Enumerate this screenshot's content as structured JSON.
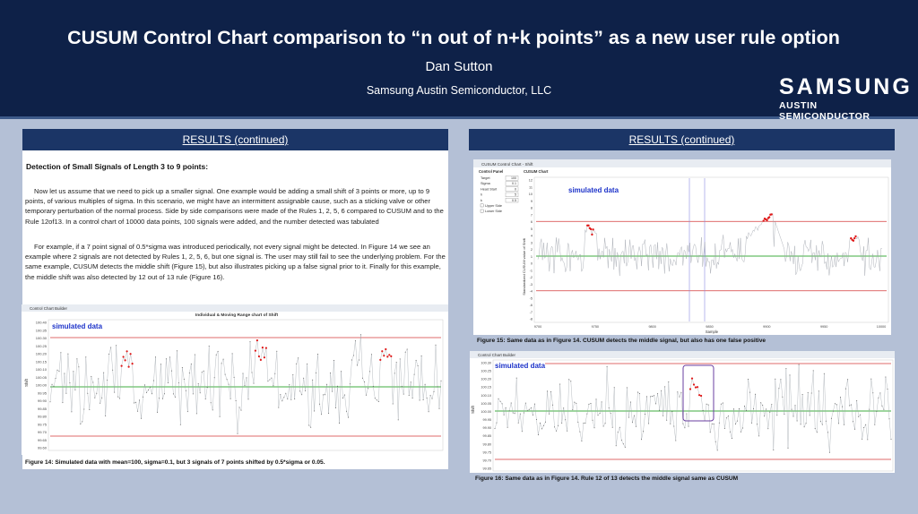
{
  "header": {
    "title": "CUSUM Control Chart comparison to “n out of n+k points” as a new user rule option",
    "author": "Dan Sutton",
    "affiliation": "Samsung Austin Semiconductor, LLC",
    "logo_main": "SAMSUNG",
    "logo_sub": "AUSTIN SEMICONDUCTOR"
  },
  "left": {
    "section_title": "RESULTS (continued)",
    "subheading": "Detection of Small Signals of Length 3 to 9 points:",
    "para1": "Now let us assume that we need to pick up a smaller signal. One example would be adding a small shift of 3 points or more, up to 9 points, of various multiples of sigma. In this scenario, we might have an intermittent assignable cause, such as a sticking valve or other temporary perturbation of the normal process. Side by side comparisons were made of the Rules 1, 2, 5, 6 compared to CUSUM and to the Rule 12of13. In a control chart of 10000 data points, 100 signals were added, and the number detected was tabulated",
    "para2": "For example, if a 7 point signal of 0.5*sigma was introduced periodically, not every signal might be detected. In Figure 14 we see an example where 2 signals are not detected by Rules 1, 2, 5, 6, but one signal is. The user may still fail to see the underlying problem. For the same example, CUSUM detects the middle shift (Figure 15), but also illustrates picking up a false signal prior to it. Finally for this example, the middle shift was also detected by 12 out of 13 rule (Figure 16).",
    "fig14_window": "Control Chart Builder",
    "fig14_title": "Individual & Moving Range chart of Shift",
    "fig14_label": "simulated data",
    "fig14_caption": "Figure 14: Simulated data with mean=100, sigma=0.1, but 3 signals of 7 points shifted by 0.5*sigma or 0.05.",
    "fig14_ylabel": "Shift",
    "fig14_ticks": [
      "100.40",
      "100.35",
      "100.30",
      "100.25",
      "100.20",
      "100.15",
      "100.10",
      "100.05",
      "100.00",
      "99.95",
      "99.90",
      "99.85",
      "99.80",
      "99.75",
      "99.70",
      "99.65",
      "99.60"
    ]
  },
  "right": {
    "section_title": "RESULTS (continued)",
    "fig15_window": "CUSUM Control Chart - Shift",
    "fig15_panel": "Control Panel",
    "fig15_chart": "CUSUM Chart",
    "fig15_fields": [
      {
        "label": "Target",
        "value": "100"
      },
      {
        "label": "Sigma",
        "value": "0.1"
      },
      {
        "label": "Head Start",
        "value": "0"
      },
      {
        "label": "h",
        "value": "5"
      },
      {
        "label": "k",
        "value": "0.5"
      }
    ],
    "fig15_checks": [
      "Upper Side",
      "Lower Side"
    ],
    "fig15_label": "simulated data",
    "fig15_ylabel": "Standardized CUSUM value of Shift",
    "fig15_xlabel": "Sample",
    "fig15_yticks": [
      "12",
      "11",
      "10",
      "9",
      "8",
      "7",
      "6",
      "5",
      "4",
      "3",
      "2",
      "1",
      "0",
      "-1",
      "-2",
      "-3",
      "-4",
      "-5",
      "-6",
      "-7",
      "-8"
    ],
    "fig15_xticks": [
      "9700",
      "9750",
      "9800",
      "9850",
      "9900",
      "9950",
      "10000"
    ],
    "fig15_caption": "Figure 15: Same data as in Figure 14. CUSUM detects the middle signal, but also has one false positive",
    "fig16_window": "Control Chart Builder",
    "fig16_label": "simulated data",
    "fig16_ylabel": "Shift",
    "fig16_ticks": [
      "100.30",
      "100.25",
      "100.20",
      "100.15",
      "100.10",
      "100.05",
      "100.00",
      "99.95",
      "99.90",
      "99.85",
      "99.80",
      "99.75",
      "99.70",
      "99.65"
    ],
    "fig16_caption": "Figure 16: Same data as in Figure 14. Rule 12 of 13 detects the middle signal same as CUSUM"
  },
  "colors": {
    "header_bg": "#0e2148",
    "section_bar": "#1b3566",
    "limit_line": "#d43a3a",
    "center_line": "#3fae3f",
    "flag_point": "#e01818",
    "label_text": "#1d33c9"
  }
}
